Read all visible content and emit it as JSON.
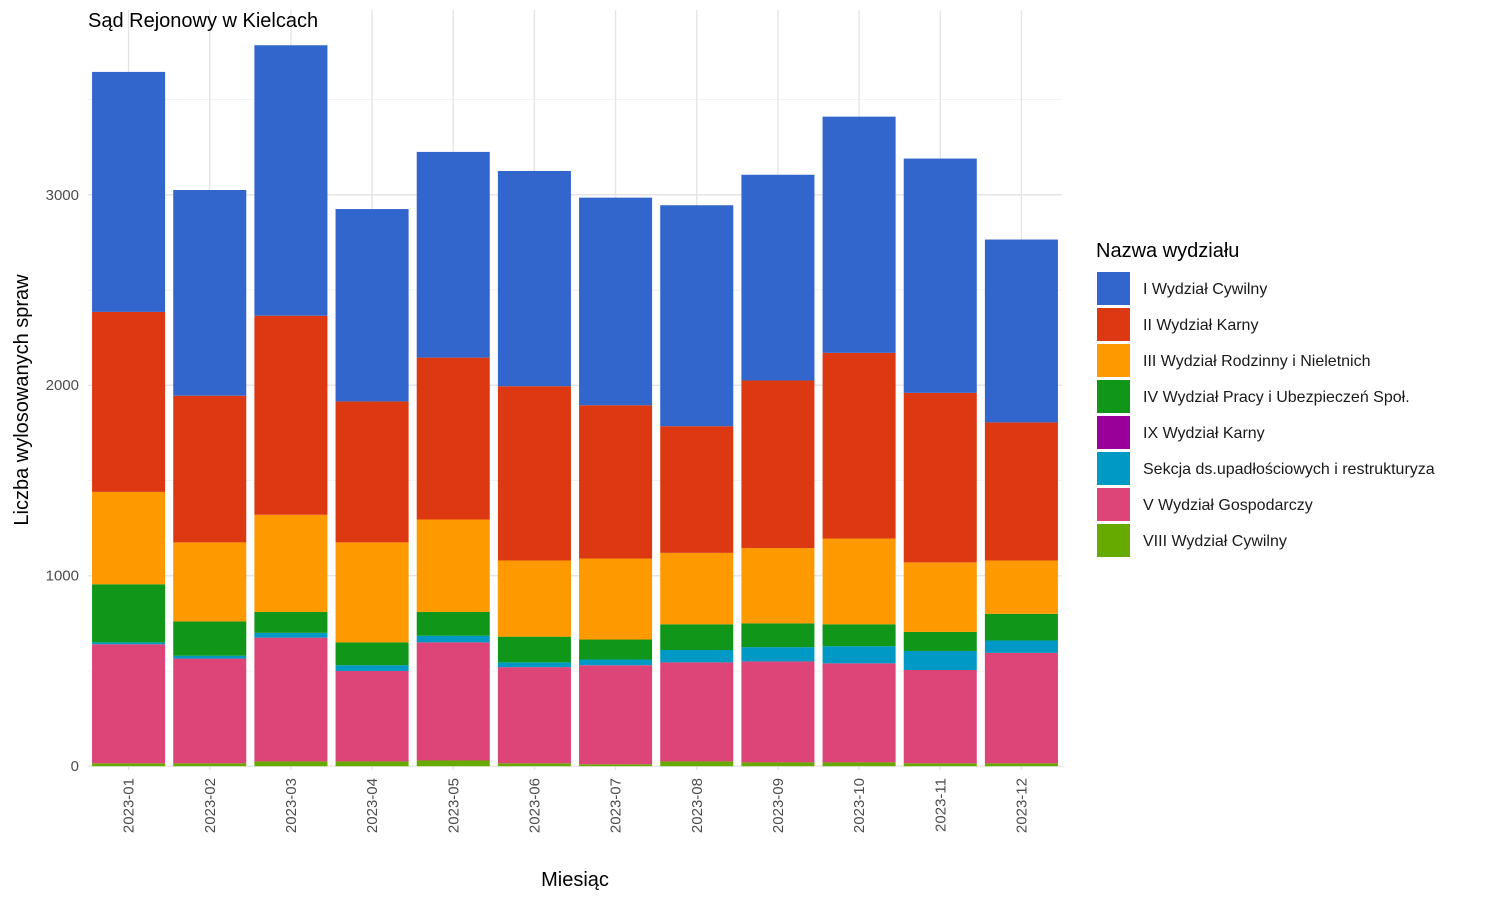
{
  "chart_data": {
    "type": "bar",
    "stacked": true,
    "title": "Sąd Rejonowy w Kielcach",
    "xlabel": "Miesiąc",
    "ylabel": "Liczba wylosowanych spraw",
    "ylim": [
      -20,
      3970
    ],
    "yticks": [
      0,
      1000,
      2000,
      3000
    ],
    "grid": true,
    "legend_title": "Nazwa wydziału",
    "legend_position": "right",
    "categories": [
      "2023-01",
      "2023-02",
      "2023-03",
      "2023-04",
      "2023-05",
      "2023-06",
      "2023-07",
      "2023-08",
      "2023-09",
      "2023-10",
      "2023-11",
      "2023-12"
    ],
    "series": [
      {
        "name": "I Wydział Cywilny",
        "color": "#3366CC",
        "values": [
          1260,
          1080,
          1420,
          1010,
          1080,
          1130,
          1090,
          1160,
          1080,
          1240,
          1230,
          960
        ]
      },
      {
        "name": "II Wydział Karny",
        "color": "#DC3912",
        "values": [
          945,
          770,
          1045,
          740,
          850,
          915,
          805,
          665,
          880,
          975,
          890,
          725
        ]
      },
      {
        "name": "III Wydział Rodzinny i Nieletnich",
        "color": "#FF9900",
        "values": [
          485,
          415,
          510,
          525,
          485,
          400,
          425,
          375,
          395,
          450,
          365,
          280
        ]
      },
      {
        "name": "IV Wydział Pracy i Ubezpieczeń Społ.",
        "color": "#109618",
        "values": [
          305,
          180,
          110,
          120,
          125,
          135,
          105,
          135,
          125,
          115,
          100,
          140
        ]
      },
      {
        "name": "IX Wydział Karny",
        "color": "#990099",
        "values": [
          0,
          0,
          0,
          0,
          0,
          0,
          0,
          0,
          0,
          0,
          0,
          0
        ]
      },
      {
        "name": "Sekcja ds.upadłościowych i restrukturyza",
        "color": "#0099C6",
        "values": [
          10,
          15,
          25,
          30,
          35,
          25,
          30,
          65,
          75,
          90,
          100,
          65
        ]
      },
      {
        "name": "V Wydział Gospodarczy",
        "color": "#DD4477",
        "values": [
          625,
          550,
          650,
          475,
          620,
          505,
          520,
          520,
          530,
          520,
          490,
          580
        ]
      },
      {
        "name": "VIII Wydział Cywilny",
        "color": "#66AA00",
        "values": [
          15,
          15,
          25,
          25,
          30,
          15,
          10,
          25,
          20,
          20,
          15,
          15
        ]
      }
    ]
  }
}
